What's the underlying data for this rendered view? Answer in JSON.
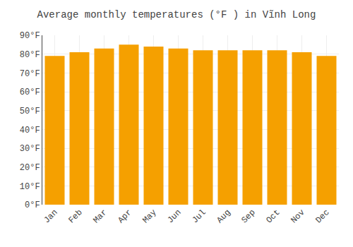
{
  "chart_data": {
    "type": "bar",
    "title": "Average monthly temperatures (°F ) in Vĩnh Long",
    "categories": [
      "Jan",
      "Feb",
      "Mar",
      "Apr",
      "May",
      "Jun",
      "Jul",
      "Aug",
      "Sep",
      "Oct",
      "Nov",
      "Dec"
    ],
    "values": [
      79,
      81,
      83,
      85,
      84,
      83,
      82,
      82,
      82,
      82,
      81,
      79
    ],
    "color": "#F5A000",
    "ylim": [
      0,
      90
    ],
    "yticks": [
      {
        "value": 0,
        "label": "0°F"
      },
      {
        "value": 10,
        "label": "10°F"
      },
      {
        "value": 20,
        "label": "20°F"
      },
      {
        "value": 30,
        "label": "30°F"
      },
      {
        "value": 40,
        "label": "40°F"
      },
      {
        "value": 50,
        "label": "50°F"
      },
      {
        "value": 60,
        "label": "60°F"
      },
      {
        "value": 70,
        "label": "70°F"
      },
      {
        "value": 80,
        "label": "80°F"
      },
      {
        "value": 90,
        "label": "90°F"
      }
    ],
    "grid": true
  }
}
